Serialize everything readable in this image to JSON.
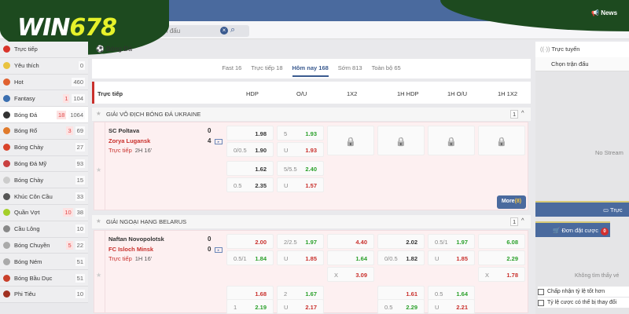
{
  "header": {
    "logo_white": "WIN",
    "logo_yellow": "678",
    "search_placeholder": "giải đấu hoặc trận đấu",
    "news": "News"
  },
  "sidebar": {
    "items": [
      {
        "label": "Trực tiếp",
        "icon": "live-icon",
        "color": "#d9342b"
      },
      {
        "label": "Yêu thích",
        "icon": "star-icon",
        "color": "#e9c340",
        "count": "0"
      },
      {
        "label": "Hot",
        "icon": "fire-icon",
        "color": "#e0612f",
        "count": "460"
      },
      {
        "label": "Fantasy",
        "icon": "fantasy-icon",
        "color": "#3b6fb0",
        "live": "1",
        "count": "104"
      },
      {
        "label": "Bóng Đá",
        "icon": "soccer-icon",
        "color": "#333333",
        "live": "18",
        "count": "1064",
        "active": true
      },
      {
        "label": "Bóng Rổ",
        "icon": "basketball-icon",
        "color": "#e07a2b",
        "live": "3",
        "count": "69"
      },
      {
        "label": "Bóng Chày",
        "icon": "baseball-icon",
        "color": "#d9442b",
        "count": "27"
      },
      {
        "label": "Bóng Đá Mỹ",
        "icon": "football-helmet-icon",
        "color": "#c94040",
        "count": "93"
      },
      {
        "label": "Bóng Chày",
        "icon": "softball-icon",
        "color": "#cccccc",
        "count": "15"
      },
      {
        "label": "Khúc Côn Cầu",
        "icon": "hockey-icon",
        "color": "#555555",
        "count": "33"
      },
      {
        "label": "Quần Vợt",
        "icon": "tennis-icon",
        "color": "#a5cf2a",
        "live": "10",
        "count": "38"
      },
      {
        "label": "Cầu Lông",
        "icon": "badminton-icon",
        "color": "#888888",
        "count": "10"
      },
      {
        "label": "Bóng Chuyền",
        "icon": "volleyball-icon",
        "color": "#aaaaaa",
        "live": "5",
        "count": "22"
      },
      {
        "label": "Bóng Ném",
        "icon": "handball-icon",
        "color": "#aaaaaa",
        "count": "51"
      },
      {
        "label": "Bóng Bầu Dục",
        "icon": "rugby-icon",
        "color": "#c9402b",
        "count": "51"
      },
      {
        "label": "Phi Tiêu",
        "icon": "darts-icon",
        "color": "#a03020",
        "count": "10"
      }
    ]
  },
  "main": {
    "sport_title": "Bóng Đá",
    "tabs": [
      {
        "label": "Fast 16"
      },
      {
        "label": "Trực tiếp 18"
      },
      {
        "label": "Hôm nay 168",
        "active": true
      },
      {
        "label": "Sớm 813"
      },
      {
        "label": "Toàn bộ 65"
      }
    ],
    "columns": {
      "title": "Trực tiếp",
      "c": [
        "HDP",
        "O/U",
        "1X2",
        "1H HDP",
        "1H O/U",
        "1H 1X2"
      ]
    },
    "more": {
      "label": "More",
      "count": "(8)"
    },
    "leagues": [
      {
        "name": "GIẢI VÔ ĐỊCH BÓNG ĐÁ UKRAINE",
        "count": "1",
        "match": {
          "home": "SC Poltava",
          "away": "Zorya Lugansk",
          "home_score": "0",
          "away_score": "4",
          "status": "Trực tiếp",
          "time": "2H 16'",
          "groups": [
            [
              [
                {
                  "h": "",
                  "v": "1.98",
                  "c": "dark"
                },
                {
                  "h": "0/0.5",
                  "v": "1.90",
                  "c": "dark"
                }
              ],
              [
                {
                  "h": "5",
                  "v": "1.93",
                  "c": "green"
                },
                {
                  "h": "U",
                  "v": "1.93",
                  "c": "red"
                }
              ],
              "locked",
              "locked",
              "locked",
              "locked"
            ],
            [
              [
                {
                  "h": "",
                  "v": "1.62",
                  "c": "dark"
                },
                {
                  "h": "0.5",
                  "v": "2.35",
                  "c": "dark"
                }
              ],
              [
                {
                  "h": "5/5.5",
                  "v": "2.40",
                  "c": "green"
                },
                {
                  "h": "U",
                  "v": "1.57",
                  "c": "red"
                }
              ],
              null,
              null,
              null,
              null
            ]
          ]
        }
      },
      {
        "name": "GIẢI NGOẠI HẠNG BELARUS",
        "count": "1",
        "match": {
          "home": "Naftan Novopolotsk",
          "away": "FC Isloch Minsk",
          "home_score": "0",
          "away_score": "0",
          "status": "Trực tiếp",
          "time": "1H 16'",
          "groups": [
            [
              [
                {
                  "h": "",
                  "v": "2.00",
                  "c": "red"
                },
                {
                  "h": "0.5/1",
                  "v": "1.84",
                  "c": "green"
                }
              ],
              [
                {
                  "h": "2/2.5",
                  "v": "1.97",
                  "c": "green"
                },
                {
                  "h": "U",
                  "v": "1.85",
                  "c": "red"
                }
              ],
              [
                {
                  "h": "",
                  "v": "4.40",
                  "c": "red"
                },
                {
                  "h": "",
                  "v": "1.64",
                  "c": "green"
                },
                {
                  "h": "X",
                  "v": "3.09",
                  "c": "red"
                }
              ],
              [
                {
                  "h": "",
                  "v": "2.02",
                  "c": "dark"
                },
                {
                  "h": "0/0.5",
                  "v": "1.82",
                  "c": "dark"
                }
              ],
              [
                {
                  "h": "0.5/1",
                  "v": "1.97",
                  "c": "green"
                },
                {
                  "h": "U",
                  "v": "1.85",
                  "c": "red"
                }
              ],
              [
                {
                  "h": "",
                  "v": "6.08",
                  "c": "green"
                },
                {
                  "h": "",
                  "v": "2.29",
                  "c": "green"
                },
                {
                  "h": "X",
                  "v": "1.78",
                  "c": "red"
                }
              ]
            ],
            [
              [
                {
                  "h": "",
                  "v": "1.68",
                  "c": "red"
                },
                {
                  "h": "1",
                  "v": "2.19",
                  "c": "green"
                }
              ],
              [
                {
                  "h": "2",
                  "v": "1.67",
                  "c": "green"
                },
                {
                  "h": "U",
                  "v": "2.17",
                  "c": "red"
                }
              ],
              null,
              [
                {
                  "h": "",
                  "v": "1.61",
                  "c": "red"
                },
                {
                  "h": "0.5",
                  "v": "2.29",
                  "c": "green"
                }
              ],
              [
                {
                  "h": "0.5",
                  "v": "1.64",
                  "c": "green"
                },
                {
                  "h": "U",
                  "v": "2.21",
                  "c": "red"
                }
              ],
              null
            ]
          ]
        }
      }
    ]
  },
  "right": {
    "live_title": "Trực tuyến",
    "select_match": "Chọn trận đấu",
    "no_stream": "No Stream",
    "live_button": "Trực",
    "betslip": "Đơn đặt cược",
    "betslip_count": "0",
    "no_bets": "Không tìm thấy vé",
    "options": [
      "Chấp nhận tỷ lệ tốt hơn",
      "Tỷ lệ cược có thể bị thay đổi"
    ]
  }
}
